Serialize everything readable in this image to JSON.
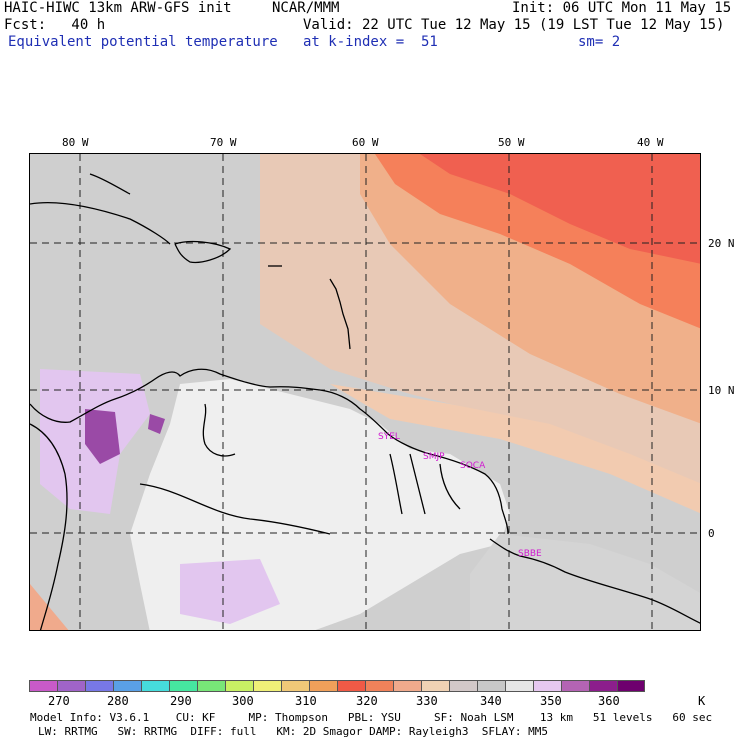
{
  "header": {
    "line1_left": "HAIC-HIWC 13km ARW-GFS init",
    "line1_mid": "NCAR/MMM",
    "line1_right": "Init: 06 UTC Mon 11 May 15",
    "line2_left": "Fcst:   40 h",
    "line2_right": "Valid: 22 UTC Tue 12 May 15 (19 LST Tue 12 May 15)",
    "line3_left": "Equivalent potential temperature",
    "line3_mid": "at k-index =  51",
    "line3_right": "sm= 2"
  },
  "axes": {
    "lon_labels": [
      "80 W",
      "70 W",
      "60 W",
      "50 W",
      "40 W"
    ],
    "lat_labels": [
      "20 N",
      "10 N",
      "0"
    ]
  },
  "stations": [
    "SYEL",
    "SMJP",
    "SOCA",
    "SBBE"
  ],
  "colorbar": {
    "colors": [
      "#c85ac8",
      "#a064c8",
      "#7878e6",
      "#5aa0e6",
      "#46dcdc",
      "#46e6a0",
      "#78e678",
      "#c8f064",
      "#f0f078",
      "#f0c878",
      "#f0a05a",
      "#f05a46",
      "#f0825a",
      "#f0aa8c",
      "#f0d2b4",
      "#d2c8c8",
      "#c8c8c8",
      "#e6e6e6",
      "#e6c8f0",
      "#b464b4",
      "#8c1e8c",
      "#6e006e"
    ],
    "labels": [
      "270",
      "280",
      "290",
      "300",
      "310",
      "320",
      "330",
      "340",
      "350",
      "360",
      "K"
    ]
  },
  "footer": {
    "line1": "Model Info: V3.6.1    CU: KF     MP: Thompson   PBL: YSU     SF: Noah LSM    13 km   51 levels   60 sec",
    "line2": "LW: RRTMG   SW: RRTMG  DIFF: full   KM: 2D Smagor DAMP: Rayleigh3  SFLAY: MM5"
  }
}
